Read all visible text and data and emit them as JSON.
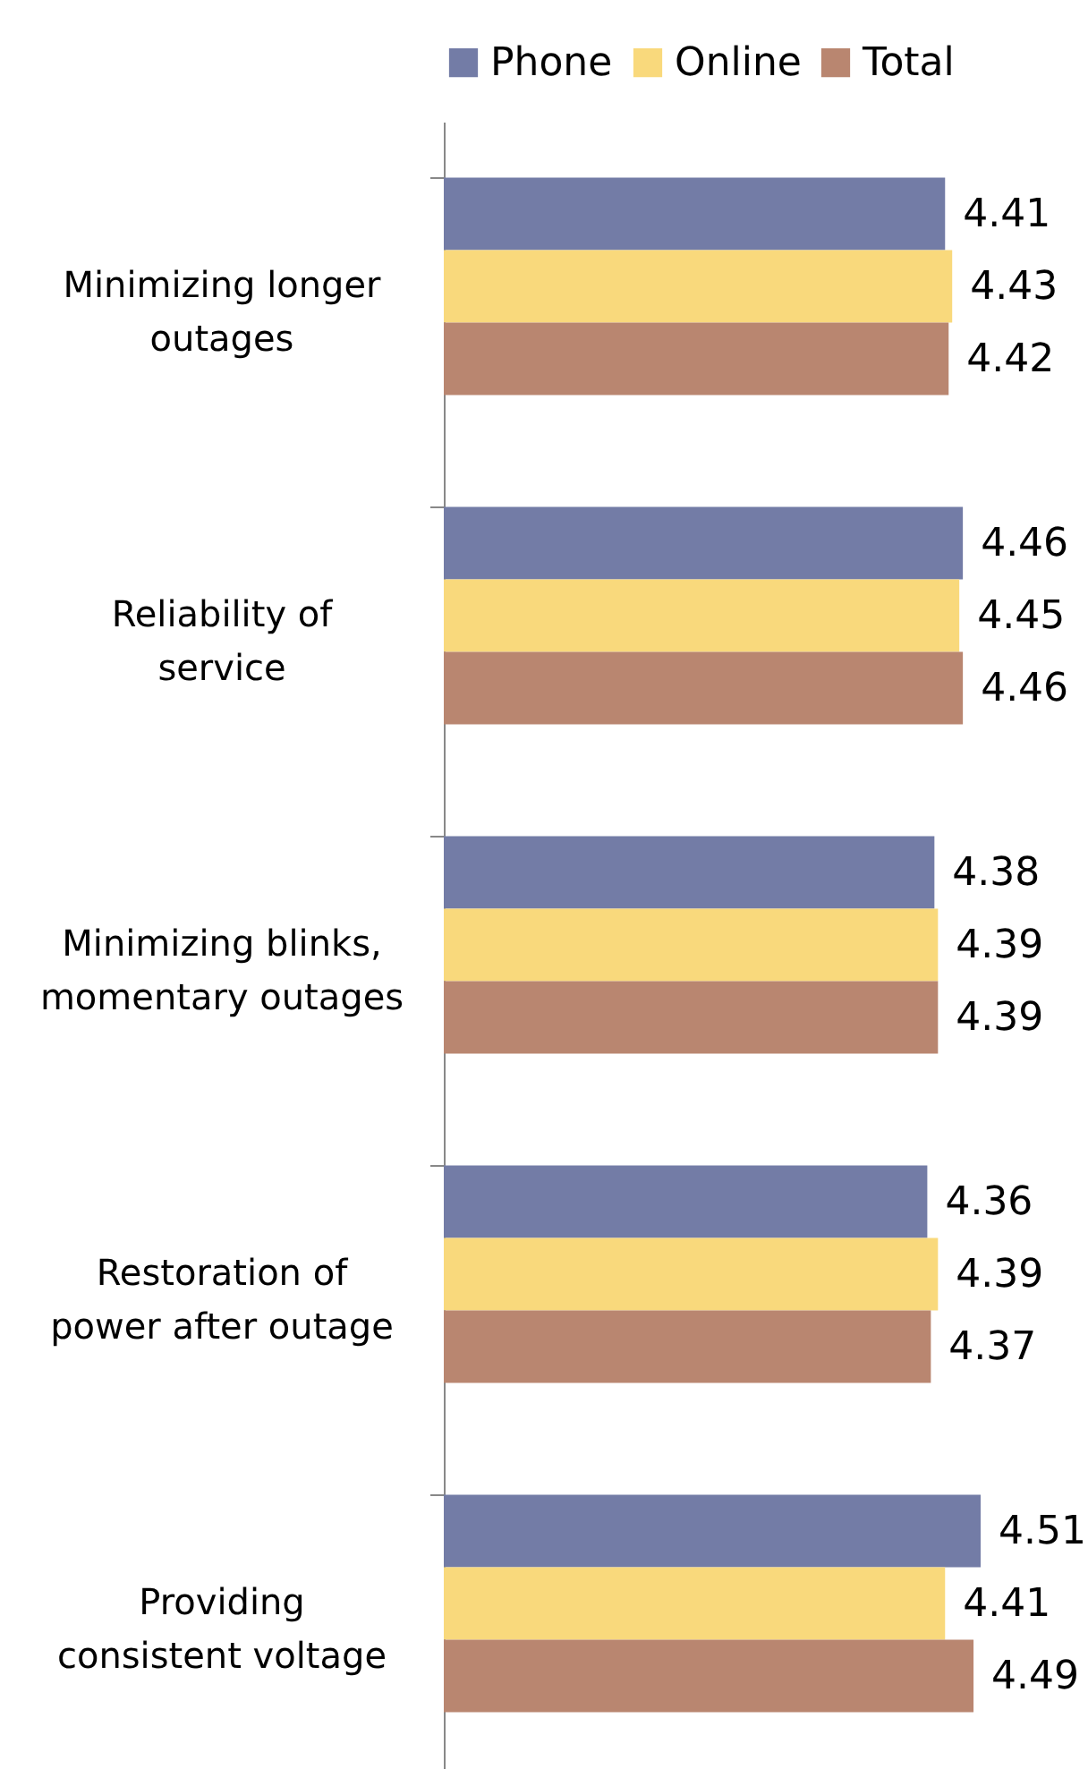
{
  "chart_data": {
    "type": "bar",
    "orientation": "horizontal",
    "categories": [
      "Minimizing longer outages",
      "Reliability of service",
      "Minimizing blinks, momentary outages",
      "Restoration of power after outage",
      "Providing consistent voltage"
    ],
    "series": [
      {
        "name": "Phone",
        "color": "#737ca6",
        "values": [
          4.41,
          4.46,
          4.38,
          4.36,
          4.51
        ]
      },
      {
        "name": "Online",
        "color": "#f9d97c",
        "values": [
          4.43,
          4.45,
          4.39,
          4.39,
          4.41
        ]
      },
      {
        "name": "Total",
        "color": "#b98670",
        "values": [
          4.42,
          4.46,
          4.39,
          4.37,
          4.49
        ]
      }
    ],
    "xlim": [
      3.0,
      4.51
    ],
    "data_labels": true,
    "legend": "top",
    "tick_labels": "y"
  }
}
